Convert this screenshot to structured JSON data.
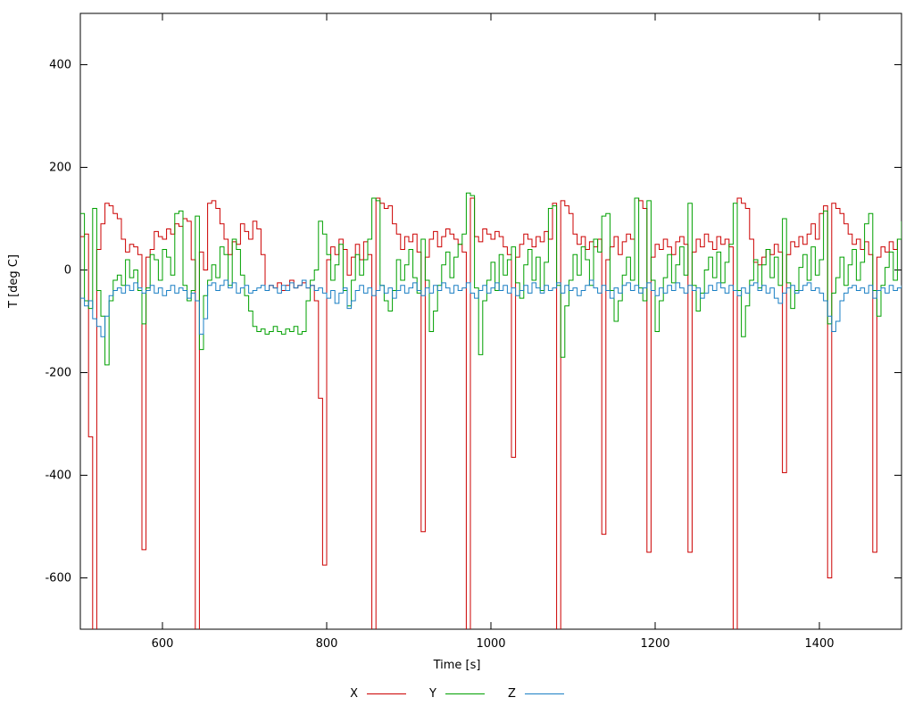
{
  "chart_data": {
    "type": "line",
    "style": "steps",
    "title": "",
    "xlabel": "Time [s]",
    "ylabel": "T [deg C]",
    "xlim": [
      500,
      1500
    ],
    "ylim": [
      -700,
      500
    ],
    "xticks": [
      600,
      800,
      1000,
      1200,
      1400
    ],
    "yticks": [
      -600,
      -400,
      -200,
      0,
      200,
      400
    ],
    "grid": false,
    "legend_position": "bottom-center",
    "x_start": 500,
    "x_step": 5,
    "series": [
      {
        "name": "X",
        "color": "#cc0000",
        "values": [
          65,
          70,
          -325,
          -750,
          40,
          90,
          130,
          125,
          110,
          100,
          60,
          35,
          50,
          45,
          30,
          -545,
          25,
          40,
          75,
          65,
          60,
          80,
          70,
          90,
          85,
          100,
          95,
          20,
          -750,
          35,
          0,
          130,
          135,
          120,
          90,
          60,
          30,
          55,
          50,
          90,
          75,
          60,
          95,
          80,
          30,
          -40,
          -30,
          -35,
          -25,
          -40,
          -30,
          -20,
          -35,
          -30,
          -25,
          -35,
          -30,
          -60,
          -250,
          -575,
          20,
          45,
          30,
          60,
          40,
          -10,
          25,
          50,
          20,
          55,
          30,
          -750,
          140,
          130,
          120,
          125,
          90,
          70,
          40,
          65,
          55,
          70,
          35,
          -510,
          25,
          60,
          75,
          45,
          65,
          80,
          70,
          60,
          50,
          35,
          -750,
          140,
          65,
          55,
          80,
          70,
          60,
          75,
          65,
          45,
          30,
          -365,
          25,
          50,
          70,
          60,
          45,
          65,
          55,
          75,
          60,
          130,
          -750,
          135,
          125,
          110,
          70,
          50,
          65,
          40,
          55,
          45,
          60,
          -515,
          20,
          45,
          65,
          30,
          55,
          70,
          60,
          140,
          135,
          120,
          -550,
          25,
          50,
          40,
          60,
          45,
          30,
          55,
          65,
          50,
          -550,
          35,
          60,
          45,
          70,
          55,
          40,
          65,
          50,
          60,
          45,
          -750,
          140,
          130,
          120,
          60,
          15,
          10,
          25,
          40,
          30,
          50,
          35,
          -395,
          30,
          55,
          45,
          65,
          50,
          70,
          90,
          60,
          110,
          125,
          -600,
          130,
          120,
          110,
          90,
          70,
          50,
          60,
          40,
          55,
          30,
          -550,
          25,
          45,
          35,
          55,
          40,
          60,
          70
        ]
      },
      {
        "name": "Y",
        "color": "#00a000",
        "values": [
          110,
          -60,
          -75,
          120,
          -40,
          -90,
          -185,
          -60,
          -20,
          -10,
          -30,
          20,
          -15,
          0,
          -40,
          -105,
          -35,
          30,
          20,
          -20,
          40,
          25,
          -10,
          110,
          115,
          -30,
          -60,
          -40,
          105,
          -155,
          -50,
          -20,
          10,
          -15,
          45,
          30,
          -30,
          60,
          40,
          -10,
          -50,
          -80,
          -110,
          -120,
          -115,
          -125,
          -120,
          -110,
          -120,
          -125,
          -115,
          -120,
          -110,
          -125,
          -120,
          -60,
          -20,
          0,
          95,
          70,
          30,
          -20,
          10,
          50,
          -40,
          -70,
          -20,
          30,
          -10,
          20,
          60,
          140,
          135,
          -30,
          -60,
          -80,
          -40,
          20,
          -20,
          10,
          40,
          -15,
          -45,
          60,
          -20,
          -120,
          -80,
          -30,
          10,
          35,
          -15,
          25,
          50,
          70,
          150,
          145,
          -35,
          -165,
          -60,
          -20,
          15,
          -40,
          30,
          -10,
          20,
          45,
          -25,
          -55,
          10,
          40,
          -20,
          25,
          -40,
          15,
          120,
          125,
          -30,
          -170,
          -70,
          -20,
          30,
          -10,
          45,
          20,
          -30,
          60,
          35,
          105,
          110,
          -40,
          -100,
          -60,
          -10,
          25,
          -20,
          140,
          -35,
          -60,
          135,
          -20,
          -120,
          -60,
          -15,
          30,
          -25,
          10,
          45,
          -10,
          130,
          -30,
          -80,
          -45,
          0,
          25,
          -15,
          35,
          -25,
          15,
          50,
          130,
          -40,
          -130,
          -70,
          -20,
          20,
          -35,
          10,
          40,
          -15,
          25,
          -30,
          100,
          -25,
          -75,
          -40,
          5,
          30,
          -20,
          45,
          -10,
          20,
          115,
          -105,
          -45,
          -15,
          25,
          -30,
          10,
          40,
          -20,
          15,
          90,
          110,
          -40,
          -90,
          -30,
          5,
          35,
          -20,
          60,
          95
        ]
      },
      {
        "name": "Z",
        "color": "#1a7fc4",
        "values": [
          -55,
          -70,
          -60,
          -95,
          -110,
          -130,
          -90,
          -50,
          -40,
          -35,
          -45,
          -30,
          -40,
          -25,
          -35,
          -45,
          -40,
          -30,
          -45,
          -35,
          -50,
          -40,
          -30,
          -45,
          -35,
          -40,
          -55,
          -45,
          -60,
          -125,
          -95,
          -30,
          -25,
          -40,
          -30,
          -20,
          -35,
          -25,
          -45,
          -35,
          -30,
          -45,
          -40,
          -35,
          -30,
          -40,
          -30,
          -35,
          -45,
          -30,
          -40,
          -25,
          -35,
          -30,
          -20,
          -35,
          -30,
          -40,
          -35,
          -45,
          -55,
          -40,
          -65,
          -45,
          -35,
          -75,
          -60,
          -40,
          -30,
          -45,
          -35,
          -50,
          -40,
          -30,
          -45,
          -35,
          -55,
          -40,
          -30,
          -45,
          -35,
          -25,
          -40,
          -50,
          -35,
          -45,
          -30,
          -40,
          -25,
          -35,
          -45,
          -30,
          -40,
          -35,
          -25,
          -45,
          -55,
          -40,
          -30,
          -45,
          -35,
          -25,
          -40,
          -30,
          -45,
          -35,
          -50,
          -40,
          -30,
          -45,
          -25,
          -35,
          -45,
          -30,
          -40,
          -35,
          -25,
          -45,
          -30,
          -40,
          -35,
          -50,
          -40,
          -30,
          -20,
          -35,
          -45,
          -30,
          -40,
          -55,
          -35,
          -45,
          -30,
          -25,
          -40,
          -30,
          -45,
          -35,
          -25,
          -40,
          -50,
          -35,
          -45,
          -30,
          -40,
          -25,
          -35,
          -45,
          -30,
          -40,
          -35,
          -55,
          -45,
          -30,
          -40,
          -25,
          -35,
          -45,
          -30,
          -40,
          -50,
          -35,
          -45,
          -30,
          -25,
          -40,
          -30,
          -45,
          -35,
          -55,
          -65,
          -45,
          -35,
          -30,
          -45,
          -40,
          -30,
          -25,
          -40,
          -35,
          -45,
          -60,
          -90,
          -120,
          -100,
          -60,
          -45,
          -35,
          -30,
          -40,
          -35,
          -45,
          -30,
          -55,
          -40,
          -35,
          -45,
          -30,
          -40,
          -35,
          -30
        ]
      }
    ]
  },
  "labels": {
    "xlabel": "Time [s]",
    "ylabel": "T [deg C]"
  },
  "legend": {
    "entries": [
      {
        "label": "X",
        "color": "#cc0000"
      },
      {
        "label": "Y",
        "color": "#00a000"
      },
      {
        "label": "Z",
        "color": "#1a7fc4"
      }
    ]
  },
  "colors": {
    "axis": "#000000",
    "background": "#ffffff"
  }
}
